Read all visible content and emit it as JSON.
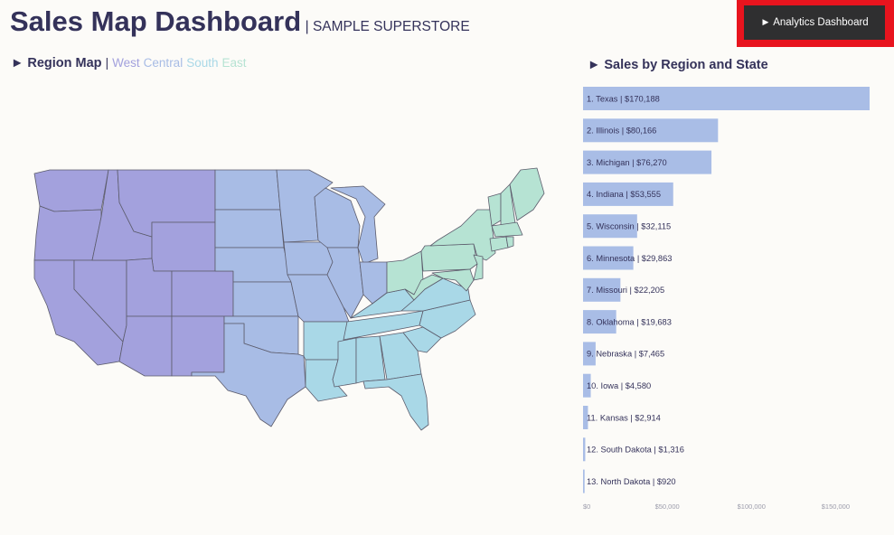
{
  "header": {
    "title": "Sales Map Dashboard",
    "subtitle": "| SAMPLE SUPERSTORE",
    "analytics_button": "► Analytics Dashboard"
  },
  "region_map": {
    "title": "► Region Map",
    "separator": "|",
    "legend": [
      {
        "label": "West",
        "color": "#a3a1dd"
      },
      {
        "label": "Central",
        "color": "#a8bce5"
      },
      {
        "label": "South",
        "color": "#a9d8e7"
      },
      {
        "label": "East",
        "color": "#b6e3d3"
      }
    ]
  },
  "sales_chart": {
    "title": "► Sales by Region and State"
  },
  "colors": {
    "bar": "#a9bde6",
    "state_border": "#5c5c6c",
    "background": "#fcfbf8",
    "button_highlight": "#e8141e"
  },
  "chart_data": {
    "type": "bar",
    "orientation": "horizontal",
    "categories": [
      "1. Texas | $170,188",
      "2. Illinois | $80,166",
      "3. Michigan | $76,270",
      "4. Indiana | $53,555",
      "5. Wisconsin | $32,115",
      "6. Minnesota | $29,863",
      "7. Missouri | $22,205",
      "8. Oklahoma | $19,683",
      "9. Nebraska | $7,465",
      "10. Iowa | $4,580",
      "11. Kansas | $2,914",
      "12. South Dakota | $1,316",
      "13. North Dakota | $920"
    ],
    "values": [
      170188,
      80166,
      76270,
      53555,
      32115,
      29863,
      22205,
      19683,
      7465,
      4580,
      2914,
      1316,
      920
    ],
    "x_ticks": [
      0,
      50000,
      100000,
      150000
    ],
    "x_tick_labels": [
      "$0",
      "$50,000",
      "$100,000",
      "$150,000"
    ],
    "xlim": [
      0,
      170188
    ]
  }
}
